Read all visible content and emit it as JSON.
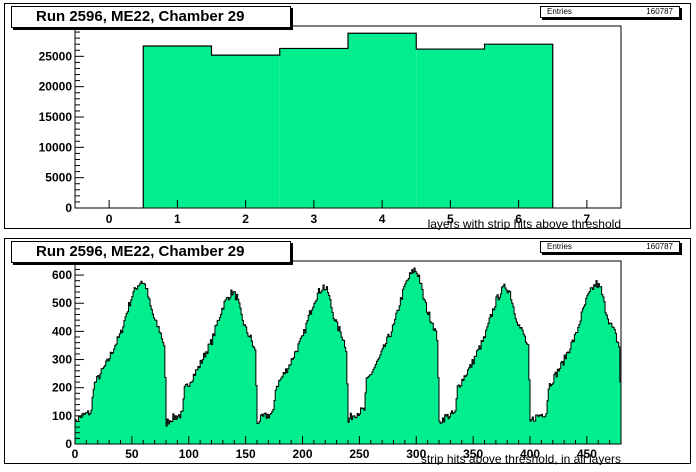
{
  "colors": {
    "fill": "#00ee8e",
    "line": "#000000",
    "frame": "#000000"
  },
  "chart_data": [
    {
      "type": "bar",
      "title": "Run 2596, ME22, Chamber 29",
      "stats": {
        "label": "Entries",
        "value": "160787"
      },
      "xlabel": "layers with strip hits above threshold",
      "ylabel": "",
      "xlim": [
        -0.5,
        7.5
      ],
      "ylim": [
        0,
        30000
      ],
      "xticks": [
        "0",
        "1",
        "2",
        "3",
        "4",
        "5",
        "6",
        "7"
      ],
      "yticks": [
        "0",
        "5000",
        "10000",
        "15000",
        "20000",
        "25000",
        "30000"
      ],
      "categories": [
        "1",
        "2",
        "3",
        "4",
        "5",
        "6"
      ],
      "values": [
        26700,
        25200,
        26300,
        28800,
        26200,
        27000
      ]
    },
    {
      "type": "area",
      "title": "Run 2596, ME22, Chamber 29",
      "stats": {
        "label": "Entries",
        "value": "160787"
      },
      "xlabel": "strip hits above threshold, in all layers",
      "ylabel": "",
      "xlim": [
        0,
        480
      ],
      "ylim": [
        0,
        650
      ],
      "xticks": [
        "0",
        "50",
        "100",
        "150",
        "200",
        "250",
        "300",
        "350",
        "400",
        "450"
      ],
      "yticks": [
        "0",
        "100",
        "200",
        "300",
        "400",
        "500",
        "600"
      ],
      "bin_width": 1,
      "segment_length": 80,
      "segments": 6,
      "profile": [
        [
          0,
          80
        ],
        [
          5,
          95
        ],
        [
          14,
          110
        ],
        [
          16,
          200
        ],
        [
          22,
          240
        ],
        [
          28,
          280
        ],
        [
          35,
          340
        ],
        [
          40,
          380
        ],
        [
          45,
          450
        ],
        [
          50,
          510
        ],
        [
          54,
          540
        ],
        [
          58,
          560
        ],
        [
          62,
          540
        ],
        [
          66,
          470
        ],
        [
          70,
          420
        ],
        [
          74,
          390
        ],
        [
          78,
          340
        ],
        [
          80,
          100
        ]
      ],
      "segment_peaks": [
        580,
        540,
        560,
        620,
        560,
        570
      ]
    }
  ]
}
